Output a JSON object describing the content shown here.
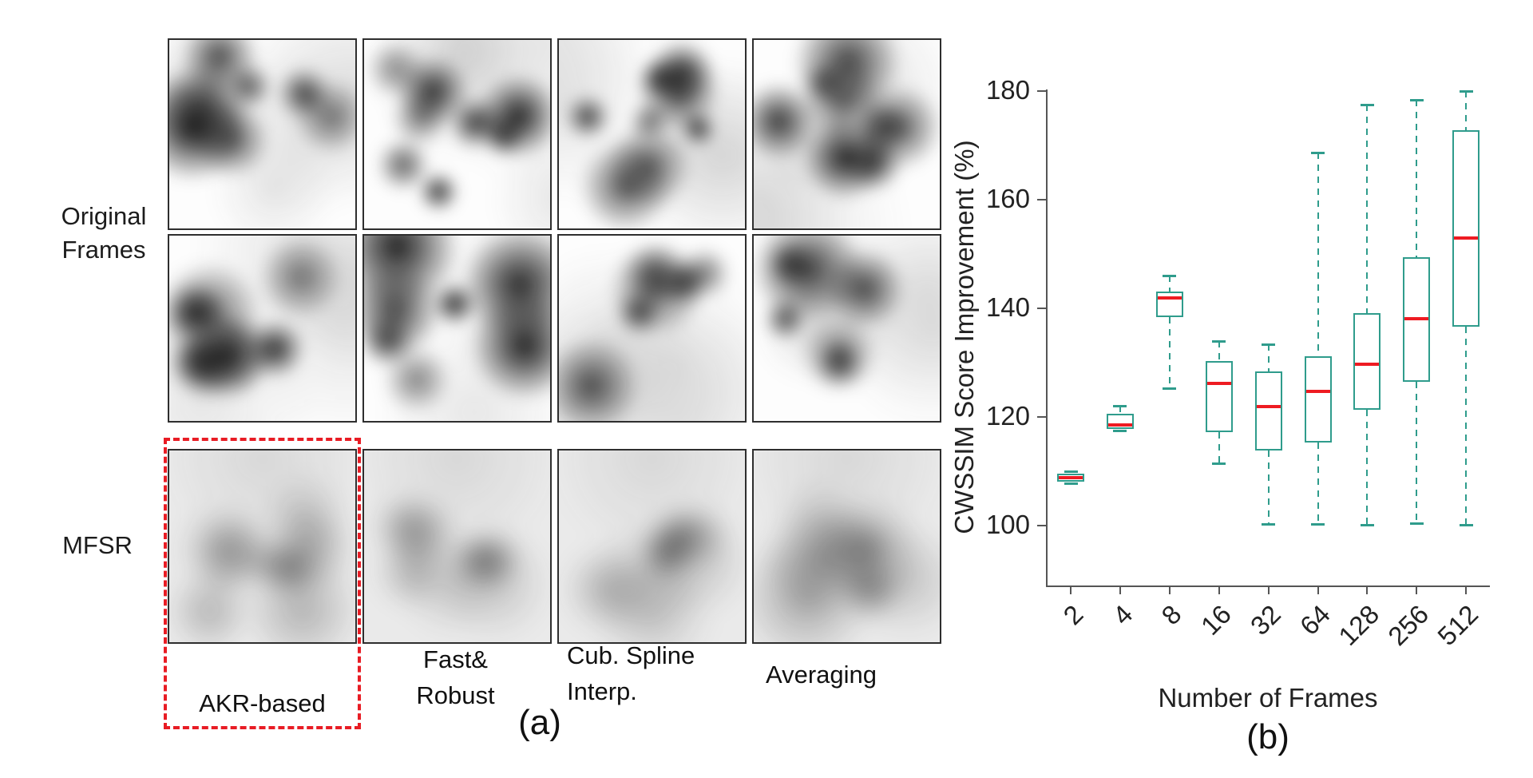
{
  "panel_a": {
    "row_label_line1": "Original",
    "row_label_line2": "Frames",
    "mfsr_label": "MFSR",
    "column_labels": [
      {
        "label": "AKR-based",
        "lines": [
          "AKR-based"
        ],
        "highlighted": true
      },
      {
        "label": "Fast& Robust",
        "lines": [
          "Fast&",
          "Robust"
        ],
        "highlighted": false
      },
      {
        "label": "Cub. Spline Interp.",
        "lines": [
          "Cub. Spline",
          "Interp."
        ],
        "highlighted": false
      },
      {
        "label": "Averaging",
        "lines": [
          "Averaging"
        ],
        "highlighted": false
      }
    ],
    "caption": "(a)",
    "highlight_color": "#e81c24",
    "grid": {
      "original_rows": 2,
      "mfsr_rows": 1,
      "columns": 4
    }
  },
  "panel_b": {
    "caption": "(b)"
  },
  "chart_data": {
    "type": "boxplot",
    "title": "",
    "xlabel": "Number of Frames",
    "ylabel": "CWSSIM Score Improvement (%)",
    "categories": [
      "2",
      "4",
      "8",
      "16",
      "32",
      "64",
      "128",
      "256",
      "512"
    ],
    "yticks": [
      100,
      120,
      140,
      160,
      180
    ],
    "ylim": [
      89,
      181
    ],
    "grid": false,
    "legend": "none",
    "box_color": "#2f9c8c",
    "median_color": "#ee1b22",
    "series": [
      {
        "category": "2",
        "whisker_low": 107.6,
        "q1": 107.9,
        "median": 108.7,
        "q3": 109.4,
        "whisker_high": 109.8
      },
      {
        "category": "4",
        "whisker_low": 117.3,
        "q1": 117.7,
        "median": 118.4,
        "q3": 120.4,
        "whisker_high": 121.9
      },
      {
        "category": "8",
        "whisker_low": 125.2,
        "q1": 138.2,
        "median": 141.8,
        "q3": 142.9,
        "whisker_high": 145.9
      },
      {
        "category": "16",
        "whisker_low": 111.3,
        "q1": 117.0,
        "median": 126.0,
        "q3": 130.2,
        "whisker_high": 133.8
      },
      {
        "category": "32",
        "whisker_low": 100.2,
        "q1": 113.7,
        "median": 121.7,
        "q3": 128.3,
        "whisker_high": 133.3
      },
      {
        "category": "64",
        "whisker_low": 100.2,
        "q1": 115.1,
        "median": 124.6,
        "q3": 131.0,
        "whisker_high": 168.5
      },
      {
        "category": "128",
        "whisker_low": 100.0,
        "q1": 121.2,
        "median": 129.6,
        "q3": 139.0,
        "whisker_high": 177.3
      },
      {
        "category": "256",
        "whisker_low": 100.3,
        "q1": 126.3,
        "median": 137.9,
        "q3": 149.3,
        "whisker_high": 178.3
      },
      {
        "category": "512",
        "whisker_low": 100.0,
        "q1": 136.5,
        "median": 152.8,
        "q3": 172.7,
        "whisker_high": 179.8
      }
    ]
  }
}
